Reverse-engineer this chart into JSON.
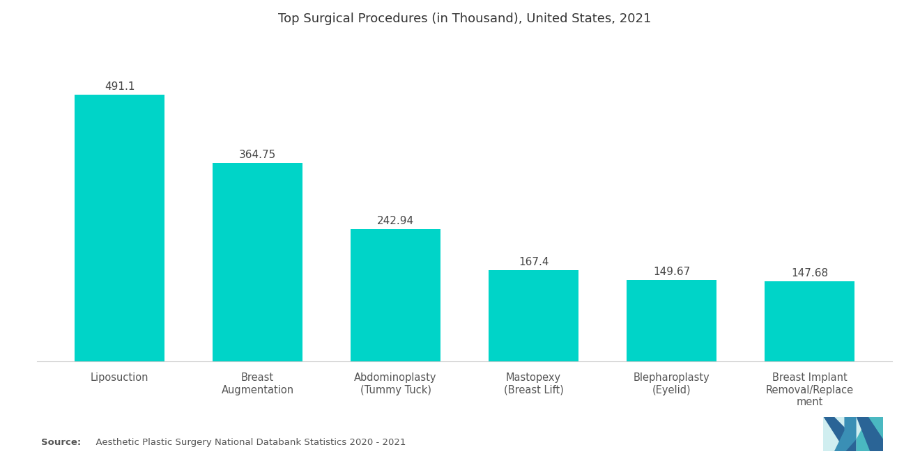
{
  "title": "Top Surgical Procedures (in Thousand), United States, 2021",
  "categories": [
    "Liposuction",
    "Breast\nAugmentation",
    "Abdominoplasty\n(Tummy Tuck)",
    "Mastopexy\n(Breast Lift)",
    "Blepharoplasty\n(Eyelid)",
    "Breast Implant\nRemoval/Replace\nment"
  ],
  "values": [
    491.1,
    364.75,
    242.94,
    167.4,
    149.67,
    147.68
  ],
  "bar_color": "#00D4C8",
  "background_color": "#FFFFFF",
  "title_fontsize": 13,
  "label_fontsize": 10.5,
  "value_fontsize": 11,
  "source_bold": "Source:",
  "source_normal": "  Aesthetic Plastic Surgery National Databank Statistics 2020 - 2021",
  "ylim": [
    0,
    580
  ],
  "bar_width": 0.65
}
